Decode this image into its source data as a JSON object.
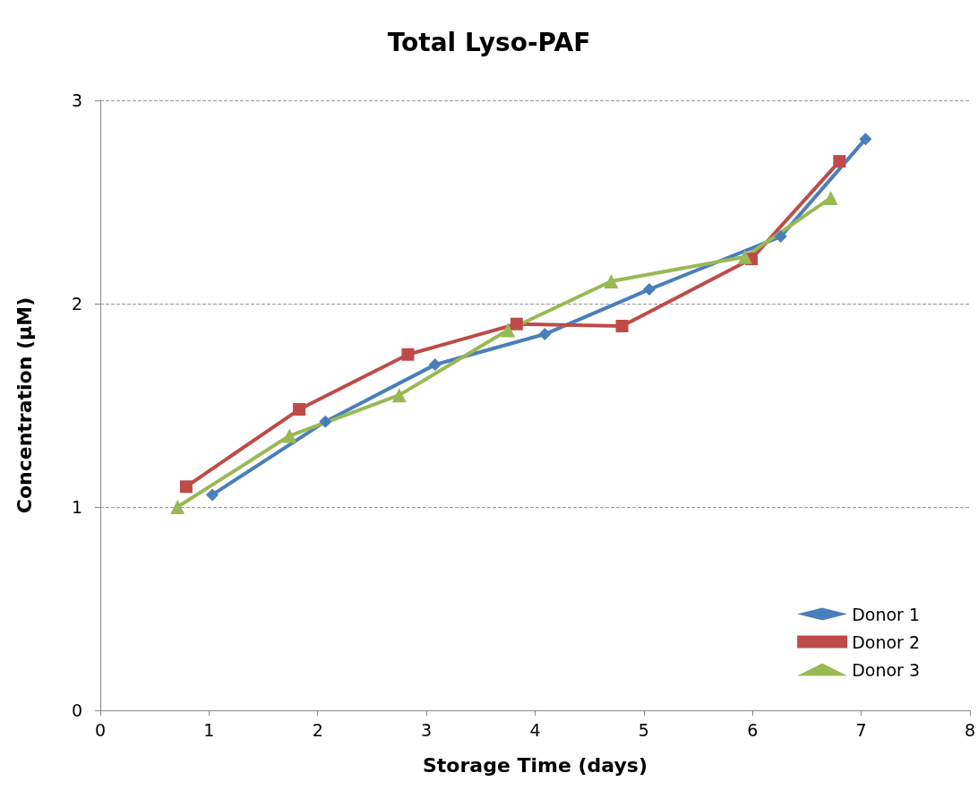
{
  "chart_data": {
    "type": "line",
    "title": "Total Lyso-PAF",
    "xlabel": "Storage Time (days)",
    "ylabel": "Concentration (µM)",
    "xlim": [
      0,
      8
    ],
    "xticks": [
      0,
      1,
      2,
      3,
      4,
      5,
      6,
      7,
      8
    ],
    "ylim": [
      0,
      3
    ],
    "yticks": [
      0,
      1,
      2,
      3
    ],
    "grid": "y",
    "legend": "bottom right",
    "line_style": "solid",
    "series": [
      {
        "name": "Donor 1",
        "color": "#4a7ebb",
        "marker": "diamond",
        "x": [
          1.03,
          2.07,
          3.08,
          4.09,
          5.05,
          6.26,
          7.04
        ],
        "values": [
          1.06,
          1.42,
          1.7,
          1.85,
          2.07,
          2.33,
          2.81
        ]
      },
      {
        "name": "Donor 2",
        "color": "#be4b48",
        "marker": "square",
        "x": [
          0.79,
          1.83,
          2.83,
          3.83,
          4.8,
          5.99,
          6.8
        ],
        "values": [
          1.1,
          1.48,
          1.75,
          1.9,
          1.89,
          2.22,
          2.7
        ]
      },
      {
        "name": "Donor 3",
        "color": "#98b954",
        "marker": "triangle",
        "x": [
          0.71,
          1.74,
          2.75,
          3.75,
          4.7,
          5.93,
          6.72
        ],
        "values": [
          1.0,
          1.35,
          1.55,
          1.87,
          2.11,
          2.23,
          2.52
        ]
      }
    ]
  }
}
